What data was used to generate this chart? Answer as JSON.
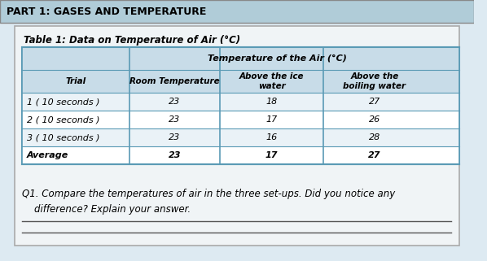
{
  "title": "PART 1: GASES AND TEMPERATURE",
  "table_title": "Table 1: Data on Temperature of Air (°C)",
  "col_header_merged": "Temperature of the Air (°C)",
  "col_headers": [
    "Trial",
    "Room Temperature",
    "Above the ice\nwater",
    "Above the\nboiling water"
  ],
  "rows": [
    [
      "1 ( 10 seconds )",
      "23",
      "18",
      "27"
    ],
    [
      "2 ( 10 seconds )",
      "23",
      "17",
      "26"
    ],
    [
      "3 ( 10 seconds )",
      "23",
      "16",
      "28"
    ],
    [
      "Average",
      "23",
      "17",
      "27"
    ]
  ],
  "question": "Q1. Compare the temperatures of air in the three set-ups. Did you notice any\n    difference? Explain your answer.",
  "bg_color": "#c8dce8",
  "table_bg": "#dce8f0",
  "header_bg": "#c8dce8",
  "border_color": "#5a9ab5",
  "title_bg": "#b0ccd8",
  "page_bg": "#ddeaf2"
}
